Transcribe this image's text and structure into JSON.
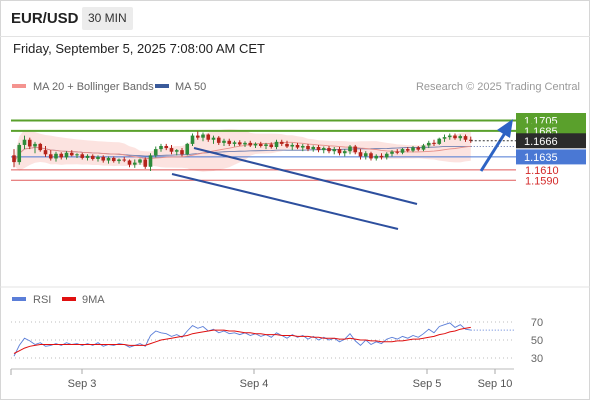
{
  "header": {
    "symbol": "EUR/USD",
    "timeframe": "30 MIN",
    "datetime": "Friday, September 5, 2025 7:08:00 AM CET"
  },
  "legend": {
    "items": [
      {
        "name": "MA 20 + Bollinger Bands",
        "color": "#f4938f"
      },
      {
        "name": "MA 50",
        "color": "#3a5a9a"
      }
    ],
    "copyright": "Research © 2025 Trading Central"
  },
  "rsi_legend": {
    "items": [
      {
        "name": "RSI",
        "color": "#5b7ed8"
      },
      {
        "name": "9MA",
        "color": "#e01010"
      }
    ]
  },
  "chart_data": {
    "type": "candlestick",
    "title": "EUR/USD",
    "timeframe": "30 MIN",
    "x_ticks": [
      "Sep 3",
      "Sep 4",
      "Sep 5",
      "Sep 10"
    ],
    "y_range": [
      1.1578,
      1.1722
    ],
    "current_price": "1.1666",
    "levels": [
      {
        "value": "1.1705",
        "type": "resistance",
        "color": "#5aa02c"
      },
      {
        "value": "1.1685",
        "type": "resistance",
        "color": "#5aa02c"
      },
      {
        "value": "1.1635",
        "type": "pivot",
        "color": "#4a78d4"
      },
      {
        "value": "1.1610",
        "type": "support",
        "color": "#e05a5a"
      },
      {
        "value": "1.1590",
        "type": "support",
        "color": "#e05a5a"
      }
    ],
    "candles": [
      [
        1.1638,
        1.165,
        1.1615,
        1.1625
      ],
      [
        1.1625,
        1.1662,
        1.162,
        1.1658
      ],
      [
        1.1658,
        1.1676,
        1.165,
        1.1668
      ],
      [
        1.1668,
        1.1672,
        1.165,
        1.1655
      ],
      [
        1.1655,
        1.1664,
        1.1642,
        1.166
      ],
      [
        1.166,
        1.1662,
        1.1645,
        1.1648
      ],
      [
        1.1648,
        1.1656,
        1.1635,
        1.164
      ],
      [
        1.164,
        1.1648,
        1.1628,
        1.1632
      ],
      [
        1.1632,
        1.1645,
        1.1626,
        1.1641
      ],
      [
        1.1641,
        1.1644,
        1.163,
        1.1634
      ],
      [
        1.1634,
        1.1646,
        1.163,
        1.1643
      ],
      [
        1.1643,
        1.1648,
        1.1636,
        1.1638
      ],
      [
        1.1638,
        1.1642,
        1.1633,
        1.164
      ],
      [
        1.164,
        1.1643,
        1.163,
        1.1633
      ],
      [
        1.1633,
        1.164,
        1.1628,
        1.1637
      ],
      [
        1.1637,
        1.164,
        1.1628,
        1.1631
      ],
      [
        1.1631,
        1.1638,
        1.1626,
        1.1635
      ],
      [
        1.1635,
        1.1638,
        1.1624,
        1.1628
      ],
      [
        1.1628,
        1.1636,
        1.1622,
        1.1633
      ],
      [
        1.1633,
        1.1636,
        1.1624,
        1.1627
      ],
      [
        1.1627,
        1.1632,
        1.1622,
        1.163
      ],
      [
        1.163,
        1.1635,
        1.1625,
        1.1628
      ],
      [
        1.1628,
        1.163,
        1.1615,
        1.162
      ],
      [
        1.162,
        1.163,
        1.1614,
        1.1624
      ],
      [
        1.1624,
        1.1632,
        1.162,
        1.163
      ],
      [
        1.163,
        1.1634,
        1.1612,
        1.1616
      ],
      [
        1.1616,
        1.1642,
        1.1608,
        1.1638
      ],
      [
        1.1638,
        1.1655,
        1.1634,
        1.165
      ],
      [
        1.165,
        1.166,
        1.1645,
        1.1656
      ],
      [
        1.1656,
        1.166,
        1.1648,
        1.1652
      ],
      [
        1.1652,
        1.1658,
        1.164,
        1.1645
      ],
      [
        1.1645,
        1.165,
        1.1638,
        1.1648
      ],
      [
        1.1648,
        1.1652,
        1.1636,
        1.164
      ],
      [
        1.164,
        1.1662,
        1.1638,
        1.166
      ],
      [
        1.166,
        1.168,
        1.1656,
        1.1676
      ],
      [
        1.1676,
        1.1684,
        1.1668,
        1.1672
      ],
      [
        1.1672,
        1.1682,
        1.1665,
        1.1678
      ],
      [
        1.1678,
        1.168,
        1.1664,
        1.1668
      ],
      [
        1.1668,
        1.1676,
        1.166,
        1.1672
      ],
      [
        1.1672,
        1.1675,
        1.1658,
        1.1662
      ],
      [
        1.1662,
        1.167,
        1.1656,
        1.1666
      ],
      [
        1.1666,
        1.167,
        1.1656,
        1.166
      ],
      [
        1.166,
        1.1666,
        1.1655,
        1.1663
      ],
      [
        1.1663,
        1.1667,
        1.1656,
        1.1659
      ],
      [
        1.1659,
        1.1665,
        1.1654,
        1.1662
      ],
      [
        1.1662,
        1.1666,
        1.1654,
        1.1657
      ],
      [
        1.1657,
        1.1663,
        1.1652,
        1.166
      ],
      [
        1.166,
        1.1664,
        1.1653,
        1.1656
      ],
      [
        1.1656,
        1.1662,
        1.165,
        1.1659
      ],
      [
        1.1659,
        1.1663,
        1.1651,
        1.1654
      ],
      [
        1.1654,
        1.1668,
        1.165,
        1.1664
      ],
      [
        1.1664,
        1.1668,
        1.1656,
        1.166
      ],
      [
        1.166,
        1.1666,
        1.1652,
        1.1655
      ],
      [
        1.1655,
        1.1662,
        1.1648,
        1.1658
      ],
      [
        1.1658,
        1.1662,
        1.165,
        1.1653
      ],
      [
        1.1653,
        1.166,
        1.1646,
        1.1656
      ],
      [
        1.1656,
        1.166,
        1.1646,
        1.165
      ],
      [
        1.165,
        1.1657,
        1.1645,
        1.1654
      ],
      [
        1.1654,
        1.1658,
        1.1644,
        1.1648
      ],
      [
        1.1648,
        1.1655,
        1.1642,
        1.1652
      ],
      [
        1.1652,
        1.1656,
        1.1642,
        1.1646
      ],
      [
        1.1646,
        1.1654,
        1.164,
        1.165
      ],
      [
        1.165,
        1.1654,
        1.1638,
        1.1642
      ],
      [
        1.1642,
        1.165,
        1.1636,
        1.1646
      ],
      [
        1.1646,
        1.1658,
        1.164,
        1.1655
      ],
      [
        1.1655,
        1.1658,
        1.164,
        1.1644
      ],
      [
        1.1644,
        1.165,
        1.163,
        1.1636
      ],
      [
        1.1636,
        1.1646,
        1.163,
        1.1642
      ],
      [
        1.1642,
        1.1645,
        1.1628,
        1.1632
      ],
      [
        1.1632,
        1.164,
        1.1628,
        1.1637
      ],
      [
        1.1637,
        1.1642,
        1.163,
        1.1634
      ],
      [
        1.1634,
        1.1644,
        1.163,
        1.1641
      ],
      [
        1.1641,
        1.1648,
        1.1636,
        1.1645
      ],
      [
        1.1645,
        1.165,
        1.164,
        1.1643
      ],
      [
        1.1643,
        1.1652,
        1.164,
        1.165
      ],
      [
        1.165,
        1.1654,
        1.1644,
        1.1647
      ],
      [
        1.1647,
        1.1656,
        1.1644,
        1.1653
      ],
      [
        1.1653,
        1.1656,
        1.1646,
        1.1649
      ],
      [
        1.1649,
        1.166,
        1.1646,
        1.1657
      ],
      [
        1.1657,
        1.1666,
        1.1652,
        1.1662
      ],
      [
        1.1662,
        1.1668,
        1.1656,
        1.166
      ],
      [
        1.166,
        1.1672,
        1.1658,
        1.167
      ],
      [
        1.167,
        1.1678,
        1.1664,
        1.1673
      ],
      [
        1.1673,
        1.168,
        1.1668,
        1.1676
      ],
      [
        1.1676,
        1.168,
        1.1668,
        1.1671
      ],
      [
        1.1671,
        1.1678,
        1.1666,
        1.1675
      ],
      [
        1.1675,
        1.1678,
        1.1664,
        1.1668
      ],
      [
        1.1668,
        1.1674,
        1.1662,
        1.1666
      ]
    ]
  },
  "rsi_chart": {
    "type": "line",
    "y_ticks": [
      "70",
      "50",
      "30"
    ],
    "y_range": [
      20,
      80
    ],
    "rsi": [
      32,
      44,
      52,
      49,
      45,
      47,
      43,
      44,
      46,
      44,
      47,
      45,
      46,
      44,
      46,
      44,
      47,
      43,
      45,
      44,
      46,
      45,
      42,
      44,
      46,
      43,
      55,
      60,
      58,
      57,
      54,
      56,
      53,
      60,
      66,
      63,
      65,
      60,
      62,
      58,
      60,
      57,
      58,
      56,
      58,
      55,
      57,
      54,
      56,
      53,
      58,
      55,
      52,
      56,
      53,
      55,
      51,
      54,
      50,
      53,
      50,
      52,
      48,
      51,
      57,
      49,
      44,
      50,
      45,
      48,
      46,
      51,
      53,
      51,
      54,
      52,
      55,
      53,
      57,
      62,
      58,
      65,
      67,
      69,
      64,
      67,
      62,
      61
    ],
    "ma9": [
      35,
      38,
      41,
      43,
      44,
      45,
      45,
      45,
      45,
      45,
      45,
      45,
      45,
      45,
      45,
      45,
      45,
      45,
      45,
      45,
      45,
      45,
      44,
      44,
      44,
      44,
      46,
      48,
      50,
      51,
      52,
      53,
      54,
      55,
      57,
      58,
      59,
      60,
      61,
      61,
      61,
      60,
      60,
      59,
      58,
      58,
      57,
      57,
      56,
      56,
      56,
      55,
      55,
      55,
      54,
      54,
      54,
      53,
      53,
      52,
      52,
      52,
      51,
      51,
      52,
      51,
      50,
      50,
      49,
      49,
      48,
      48,
      48,
      49,
      49,
      50,
      51,
      51,
      52,
      53,
      54,
      56,
      57,
      59,
      60,
      62,
      63,
      64
    ]
  }
}
